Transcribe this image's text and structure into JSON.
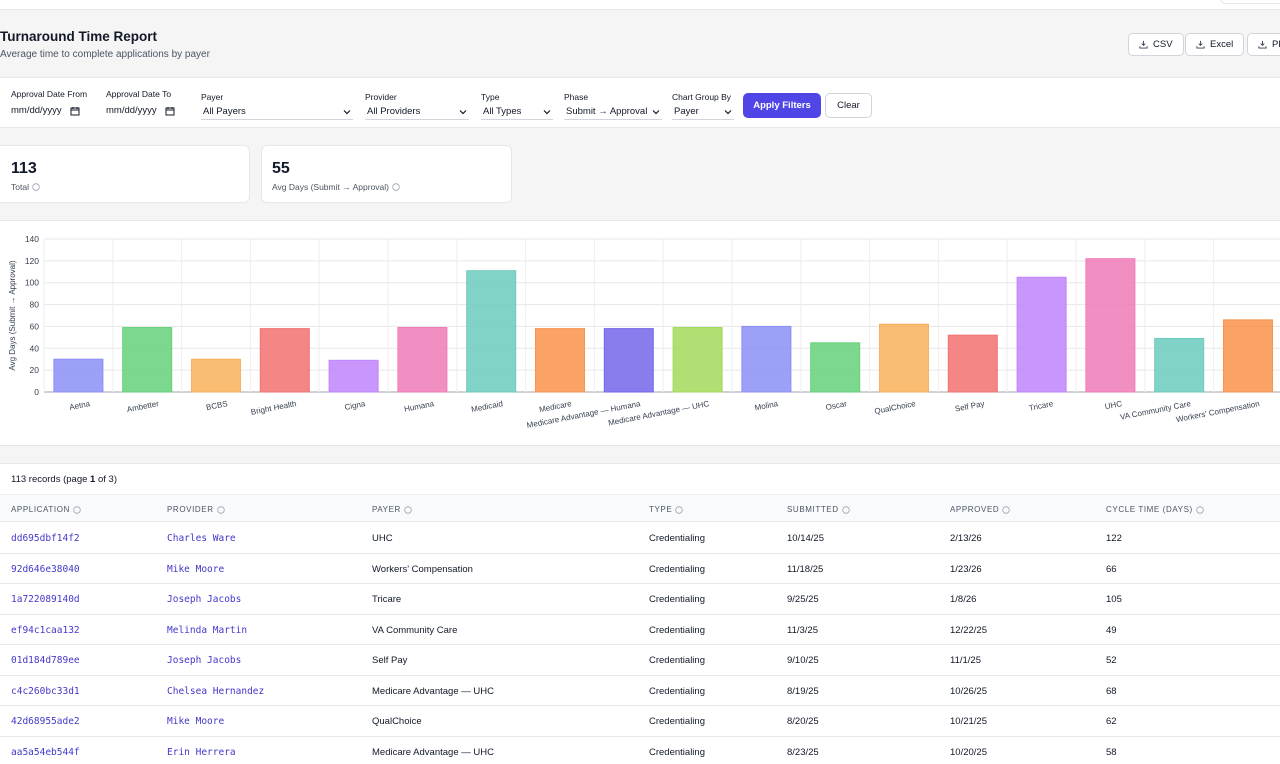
{
  "header": {
    "title": "Turnaround Time Report",
    "subtitle": "Average time to complete applications by payer"
  },
  "exports": {
    "csv": "CSV",
    "excel": "Excel",
    "pdf": "PDF"
  },
  "filters": {
    "date_from_label": "Approval Date From",
    "date_from_value": "mm/dd/yyyy",
    "date_to_label": "Approval Date To",
    "date_to_value": "mm/dd/yyyy",
    "payer_label": "Payer",
    "payer_value": "All Payers",
    "provider_label": "Provider",
    "provider_value": "All Providers",
    "type_label": "Type",
    "type_value": "All Types",
    "phase_label": "Phase",
    "phase_value": "Submit → Approval",
    "group_label": "Chart Group By",
    "group_value": "Payer",
    "apply": "Apply Filters",
    "clear": "Clear"
  },
  "stats": {
    "total_value": "113",
    "total_label": "Total",
    "avg_value": "55",
    "avg_label": "Avg Days (Submit → Approval)"
  },
  "chart_data": {
    "type": "bar",
    "ylabel": "Avg Days (Submit → Approval)",
    "ylim": [
      0,
      140
    ],
    "yticks": [
      0,
      20,
      40,
      60,
      80,
      100,
      120,
      140
    ],
    "grid": true,
    "categories": [
      "Aetna",
      "Ambetter",
      "BCBS",
      "Bright Health",
      "Cigna",
      "Humana",
      "Medicaid",
      "Medicare",
      "Medicare Advantage — Humana",
      "Medicare Advantage — UHC",
      "Molina",
      "Oscar",
      "QualChoice",
      "Self Pay",
      "Tricare",
      "UHC",
      "VA Community Care",
      "Workers' Compensation"
    ],
    "values": [
      30,
      59,
      30,
      58,
      29,
      59,
      111,
      58,
      58,
      59,
      60,
      45,
      62,
      52,
      105,
      122,
      49,
      66
    ],
    "colors": [
      "#8b8ff5",
      "#66d17b",
      "#f9b15c",
      "#f27171",
      "#c084fc",
      "#f07bb7",
      "#6ccbbd",
      "#fa934c",
      "#7466ea",
      "#a3d95a",
      "#8b8ff5",
      "#66d17b",
      "#f9b15c",
      "#f27171",
      "#c084fc",
      "#f07bb7",
      "#6ccbbd",
      "#fa934c"
    ]
  },
  "table": {
    "records_count": "113 records",
    "records_page": "(page ",
    "records_page_num": "1",
    "records_page_total": " of 3)",
    "columns": [
      "APPLICATION",
      "PROVIDER",
      "PAYER",
      "TYPE",
      "SUBMITTED",
      "APPROVED",
      "CYCLE TIME (DAYS)"
    ],
    "rows": [
      [
        "dd695dbf14f2",
        "Charles Ware",
        "UHC",
        "Credentialing",
        "10/14/25",
        "2/13/26",
        "122"
      ],
      [
        "92d646e38040",
        "Mike Moore",
        "Workers' Compensation",
        "Credentialing",
        "11/18/25",
        "1/23/26",
        "66"
      ],
      [
        "1a722089140d",
        "Joseph Jacobs",
        "Tricare",
        "Credentialing",
        "9/25/25",
        "1/8/26",
        "105"
      ],
      [
        "ef94c1caa132",
        "Melinda Martin",
        "VA Community Care",
        "Credentialing",
        "11/3/25",
        "12/22/25",
        "49"
      ],
      [
        "01d184d789ee",
        "Joseph Jacobs",
        "Self Pay",
        "Credentialing",
        "9/10/25",
        "11/1/25",
        "52"
      ],
      [
        "c4c260bc33d1",
        "Chelsea Hernandez",
        "Medicare Advantage — UHC",
        "Credentialing",
        "8/19/25",
        "10/26/25",
        "68"
      ],
      [
        "42d68955ade2",
        "Mike Moore",
        "QualChoice",
        "Credentialing",
        "8/20/25",
        "10/21/25",
        "62"
      ],
      [
        "aa5a54eb544f",
        "Erin Herrera",
        "Medicare Advantage — UHC",
        "Credentialing",
        "8/23/25",
        "10/20/25",
        "58"
      ]
    ]
  }
}
